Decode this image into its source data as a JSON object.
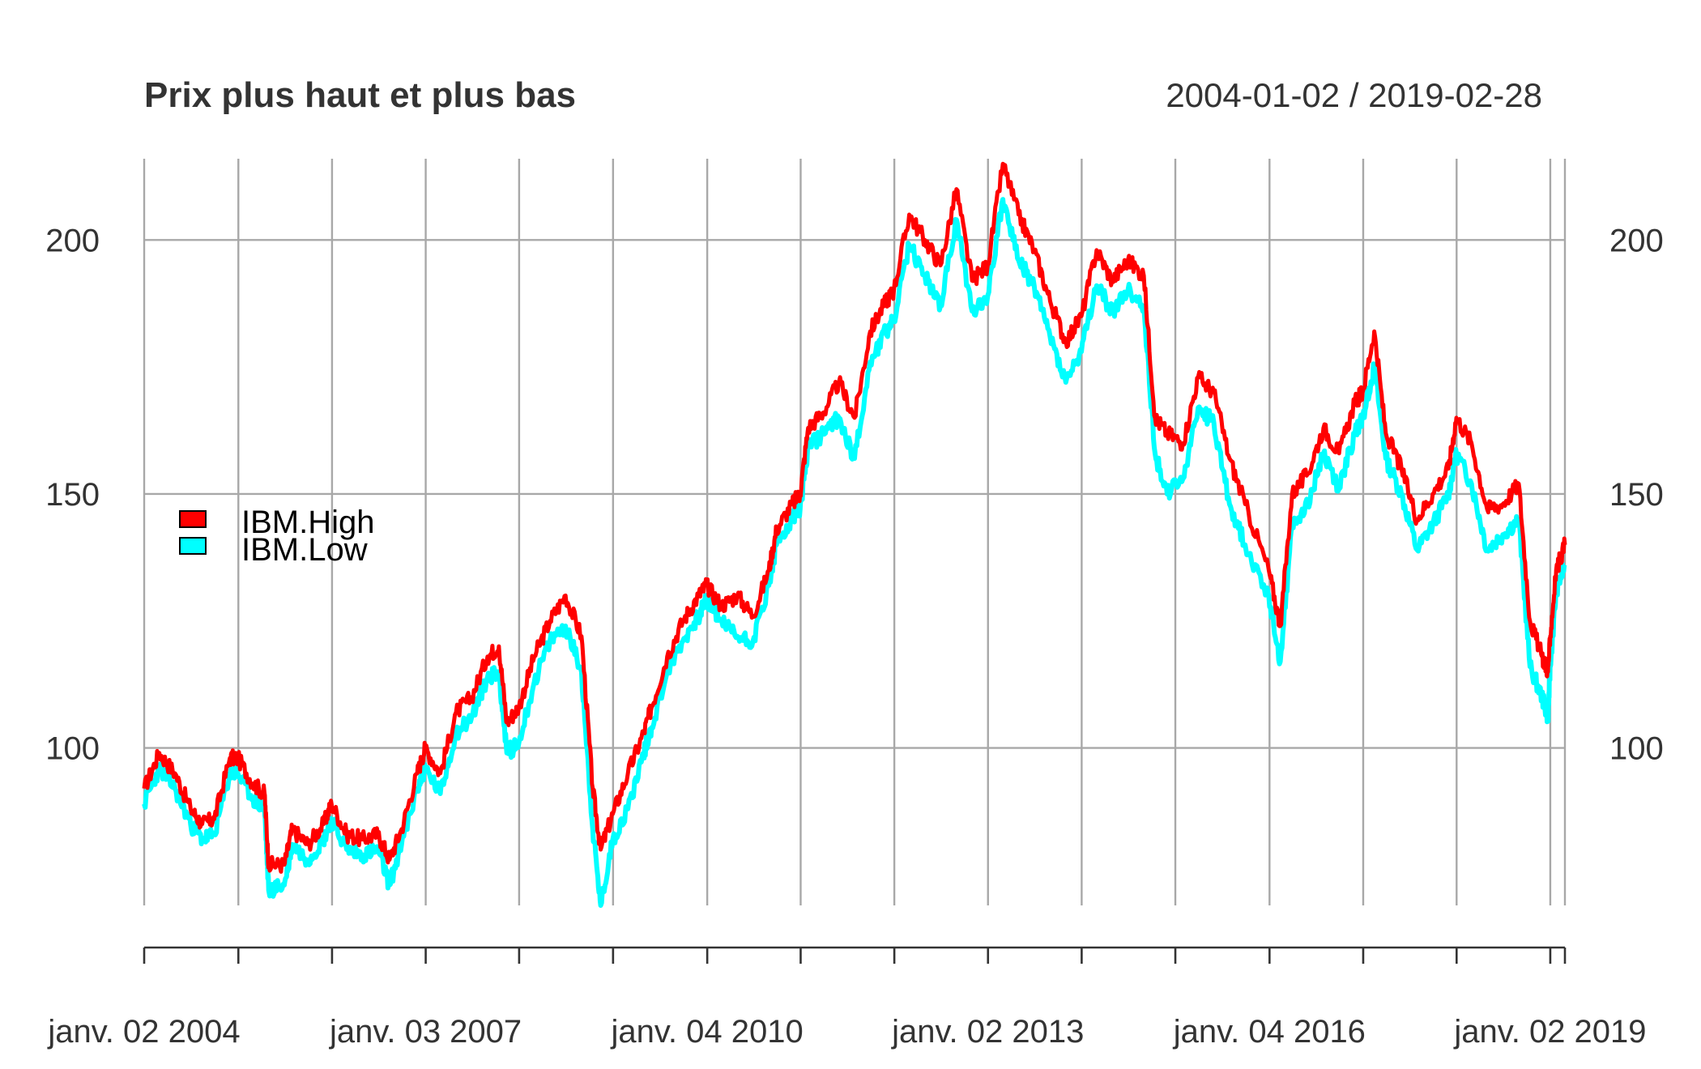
{
  "chart_data": {
    "type": "line",
    "title": "Prix plus haut et plus bas",
    "date_range_label": "2004-01-02 / 2019-02-28",
    "x_start": "2004-01-02",
    "x_end": "2019-02-28",
    "ylim": [
      69,
      216
    ],
    "y_ticks": [
      100,
      150,
      200
    ],
    "y_tick_labels": [
      "100",
      "150",
      "200"
    ],
    "grid": true,
    "x_gridlines": [
      "2004-01-02",
      "2005-01-03",
      "2006-01-03",
      "2007-01-03",
      "2008-01-02",
      "2009-01-02",
      "2010-01-04",
      "2011-01-03",
      "2012-01-03",
      "2013-01-02",
      "2014-01-02",
      "2015-01-02",
      "2016-01-04",
      "2017-01-03",
      "2018-01-02",
      "2019-01-02",
      "2019-02-28"
    ],
    "x_tick_labels": [
      {
        "date": "2004-01-02",
        "label": "janv. 02 2004"
      },
      {
        "date": "2007-01-03",
        "label": "janv. 03 2007"
      },
      {
        "date": "2010-01-04",
        "label": "janv. 04 2010"
      },
      {
        "date": "2013-01-02",
        "label": "janv. 02 2013"
      },
      {
        "date": "2016-01-04",
        "label": "janv. 04 2016"
      },
      {
        "date": "2019-01-02",
        "label": "janv. 02 2019"
      }
    ],
    "legend_position": "left",
    "series": [
      {
        "name": "IBM.High",
        "color": "#ff0000",
        "points": [
          [
            "2004-01-02",
            92
          ],
          [
            "2004-03-01",
            99
          ],
          [
            "2004-05-01",
            95
          ],
          [
            "2004-07-01",
            88
          ],
          [
            "2004-08-15",
            85
          ],
          [
            "2004-10-01",
            86
          ],
          [
            "2004-12-01",
            98
          ],
          [
            "2005-01-01",
            98
          ],
          [
            "2005-03-01",
            93
          ],
          [
            "2005-04-15",
            91
          ],
          [
            "2005-05-01",
            77
          ],
          [
            "2005-07-01",
            77
          ],
          [
            "2005-08-01",
            84
          ],
          [
            "2005-10-01",
            81
          ],
          [
            "2005-12-01",
            85
          ],
          [
            "2006-01-01",
            89
          ],
          [
            "2006-03-01",
            83
          ],
          [
            "2006-05-01",
            82
          ],
          [
            "2006-07-01",
            83
          ],
          [
            "2006-08-15",
            78
          ],
          [
            "2006-10-01",
            84
          ],
          [
            "2006-12-01",
            95
          ],
          [
            "2007-01-01",
            100
          ],
          [
            "2007-03-01",
            95
          ],
          [
            "2007-05-01",
            107
          ],
          [
            "2007-07-01",
            110
          ],
          [
            "2007-09-01",
            118
          ],
          [
            "2007-10-15",
            120
          ],
          [
            "2007-11-15",
            105
          ],
          [
            "2008-01-01",
            108
          ],
          [
            "2008-03-01",
            118
          ],
          [
            "2008-05-01",
            125
          ],
          [
            "2008-07-01",
            130
          ],
          [
            "2008-09-01",
            122
          ],
          [
            "2008-10-15",
            92
          ],
          [
            "2008-11-15",
            80
          ],
          [
            "2009-01-01",
            87
          ],
          [
            "2009-03-01",
            95
          ],
          [
            "2009-05-01",
            103
          ],
          [
            "2009-06-01",
            108
          ],
          [
            "2009-08-01",
            118
          ],
          [
            "2009-10-01",
            125
          ],
          [
            "2009-12-01",
            130
          ],
          [
            "2010-01-01",
            132
          ],
          [
            "2010-03-01",
            128
          ],
          [
            "2010-05-01",
            130
          ],
          [
            "2010-07-01",
            126
          ],
          [
            "2010-09-01",
            135
          ],
          [
            "2010-10-01",
            143
          ],
          [
            "2010-12-01",
            148
          ],
          [
            "2011-01-01",
            150
          ],
          [
            "2011-02-01",
            163
          ],
          [
            "2011-04-01",
            166
          ],
          [
            "2011-06-01",
            172
          ],
          [
            "2011-08-01",
            165
          ],
          [
            "2011-10-01",
            182
          ],
          [
            "2011-12-01",
            188
          ],
          [
            "2012-01-01",
            190
          ],
          [
            "2012-03-01",
            205
          ],
          [
            "2012-05-01",
            200
          ],
          [
            "2012-07-01",
            195
          ],
          [
            "2012-09-01",
            210
          ],
          [
            "2012-11-01",
            192
          ],
          [
            "2013-01-01",
            195
          ],
          [
            "2013-03-01",
            215
          ],
          [
            "2013-05-01",
            205
          ],
          [
            "2013-07-01",
            198
          ],
          [
            "2013-09-01",
            188
          ],
          [
            "2013-11-01",
            180
          ],
          [
            "2014-01-01",
            185
          ],
          [
            "2014-03-01",
            198
          ],
          [
            "2014-05-01",
            192
          ],
          [
            "2014-07-01",
            196
          ],
          [
            "2014-09-01",
            193
          ],
          [
            "2014-10-15",
            165
          ],
          [
            "2014-12-01",
            162
          ],
          [
            "2015-02-01",
            160
          ],
          [
            "2015-04-01",
            173
          ],
          [
            "2015-06-01",
            170
          ],
          [
            "2015-08-01",
            157
          ],
          [
            "2015-10-01",
            148
          ],
          [
            "2016-01-01",
            135
          ],
          [
            "2016-02-15",
            124
          ],
          [
            "2016-04-01",
            150
          ],
          [
            "2016-06-01",
            154
          ],
          [
            "2016-08-01",
            163
          ],
          [
            "2016-10-01",
            158
          ],
          [
            "2016-12-01",
            168
          ],
          [
            "2017-01-01",
            170
          ],
          [
            "2017-02-15",
            182
          ],
          [
            "2017-04-01",
            162
          ],
          [
            "2017-06-01",
            155
          ],
          [
            "2017-08-01",
            145
          ],
          [
            "2017-10-01",
            150
          ],
          [
            "2017-12-01",
            155
          ],
          [
            "2018-01-01",
            165
          ],
          [
            "2018-03-01",
            160
          ],
          [
            "2018-05-01",
            147
          ],
          [
            "2018-07-01",
            148
          ],
          [
            "2018-09-01",
            152
          ],
          [
            "2018-10-15",
            125
          ],
          [
            "2018-12-01",
            118
          ],
          [
            "2018-12-24",
            115
          ],
          [
            "2019-01-02",
            122
          ],
          [
            "2019-01-25",
            135
          ],
          [
            "2019-02-28",
            140
          ]
        ]
      },
      {
        "name": "IBM.Low",
        "color": "#00ffff",
        "points": [
          [
            "2004-01-02",
            89
          ],
          [
            "2004-03-01",
            96
          ],
          [
            "2004-05-01",
            92
          ],
          [
            "2004-07-01",
            85
          ],
          [
            "2004-08-15",
            82
          ],
          [
            "2004-10-01",
            83
          ],
          [
            "2004-12-01",
            95
          ],
          [
            "2005-01-01",
            95
          ],
          [
            "2005-03-01",
            90
          ],
          [
            "2005-04-15",
            88
          ],
          [
            "2005-05-01",
            72
          ],
          [
            "2005-07-01",
            73
          ],
          [
            "2005-08-01",
            81
          ],
          [
            "2005-10-01",
            78
          ],
          [
            "2005-12-01",
            82
          ],
          [
            "2006-01-01",
            86
          ],
          [
            "2006-03-01",
            80
          ],
          [
            "2006-05-01",
            79
          ],
          [
            "2006-07-01",
            80
          ],
          [
            "2006-08-15",
            73
          ],
          [
            "2006-10-01",
            81
          ],
          [
            "2006-12-01",
            92
          ],
          [
            "2007-01-01",
            96
          ],
          [
            "2007-03-01",
            91
          ],
          [
            "2007-05-01",
            103
          ],
          [
            "2007-07-01",
            106
          ],
          [
            "2007-09-01",
            114
          ],
          [
            "2007-10-15",
            115
          ],
          [
            "2007-11-15",
            99
          ],
          [
            "2008-01-01",
            101
          ],
          [
            "2008-03-01",
            113
          ],
          [
            "2008-05-01",
            121
          ],
          [
            "2008-07-01",
            124
          ],
          [
            "2008-09-01",
            115
          ],
          [
            "2008-10-15",
            84
          ],
          [
            "2008-11-15",
            69
          ],
          [
            "2009-01-01",
            82
          ],
          [
            "2009-03-01",
            88
          ],
          [
            "2009-05-01",
            99
          ],
          [
            "2009-06-01",
            104
          ],
          [
            "2009-08-01",
            115
          ],
          [
            "2009-10-01",
            121
          ],
          [
            "2009-12-01",
            126
          ],
          [
            "2010-01-01",
            129
          ],
          [
            "2010-03-01",
            125
          ],
          [
            "2010-05-01",
            122
          ],
          [
            "2010-07-01",
            121
          ],
          [
            "2010-09-01",
            132
          ],
          [
            "2010-10-01",
            140
          ],
          [
            "2010-12-01",
            145
          ],
          [
            "2011-01-01",
            147
          ],
          [
            "2011-02-01",
            159
          ],
          [
            "2011-04-01",
            162
          ],
          [
            "2011-06-01",
            165
          ],
          [
            "2011-08-01",
            157
          ],
          [
            "2011-10-01",
            176
          ],
          [
            "2011-12-01",
            182
          ],
          [
            "2012-01-01",
            184
          ],
          [
            "2012-03-01",
            199
          ],
          [
            "2012-05-01",
            193
          ],
          [
            "2012-07-01",
            187
          ],
          [
            "2012-09-01",
            204
          ],
          [
            "2012-11-01",
            186
          ],
          [
            "2013-01-01",
            189
          ],
          [
            "2013-03-01",
            208
          ],
          [
            "2013-05-01",
            196
          ],
          [
            "2013-07-01",
            191
          ],
          [
            "2013-09-01",
            181
          ],
          [
            "2013-11-01",
            172
          ],
          [
            "2014-01-01",
            178
          ],
          [
            "2014-03-01",
            191
          ],
          [
            "2014-05-01",
            186
          ],
          [
            "2014-07-01",
            190
          ],
          [
            "2014-09-01",
            187
          ],
          [
            "2014-10-15",
            158
          ],
          [
            "2014-12-01",
            150
          ],
          [
            "2015-02-01",
            153
          ],
          [
            "2015-04-01",
            167
          ],
          [
            "2015-06-01",
            164
          ],
          [
            "2015-08-01",
            148
          ],
          [
            "2015-10-01",
            140
          ],
          [
            "2016-01-01",
            130
          ],
          [
            "2016-02-15",
            117
          ],
          [
            "2016-04-01",
            144
          ],
          [
            "2016-06-01",
            148
          ],
          [
            "2016-08-01",
            158
          ],
          [
            "2016-10-01",
            151
          ],
          [
            "2016-12-01",
            162
          ],
          [
            "2017-01-01",
            165
          ],
          [
            "2017-02-15",
            175
          ],
          [
            "2017-04-01",
            157
          ],
          [
            "2017-06-01",
            150
          ],
          [
            "2017-08-01",
            139
          ],
          [
            "2017-10-01",
            144
          ],
          [
            "2017-12-01",
            150
          ],
          [
            "2018-01-01",
            158
          ],
          [
            "2018-03-01",
            152
          ],
          [
            "2018-05-01",
            139
          ],
          [
            "2018-07-01",
            142
          ],
          [
            "2018-09-01",
            145
          ],
          [
            "2018-10-15",
            116
          ],
          [
            "2018-12-01",
            110
          ],
          [
            "2018-12-24",
            106
          ],
          [
            "2019-01-02",
            116
          ],
          [
            "2019-01-25",
            131
          ],
          [
            "2019-02-28",
            136
          ]
        ]
      }
    ]
  }
}
